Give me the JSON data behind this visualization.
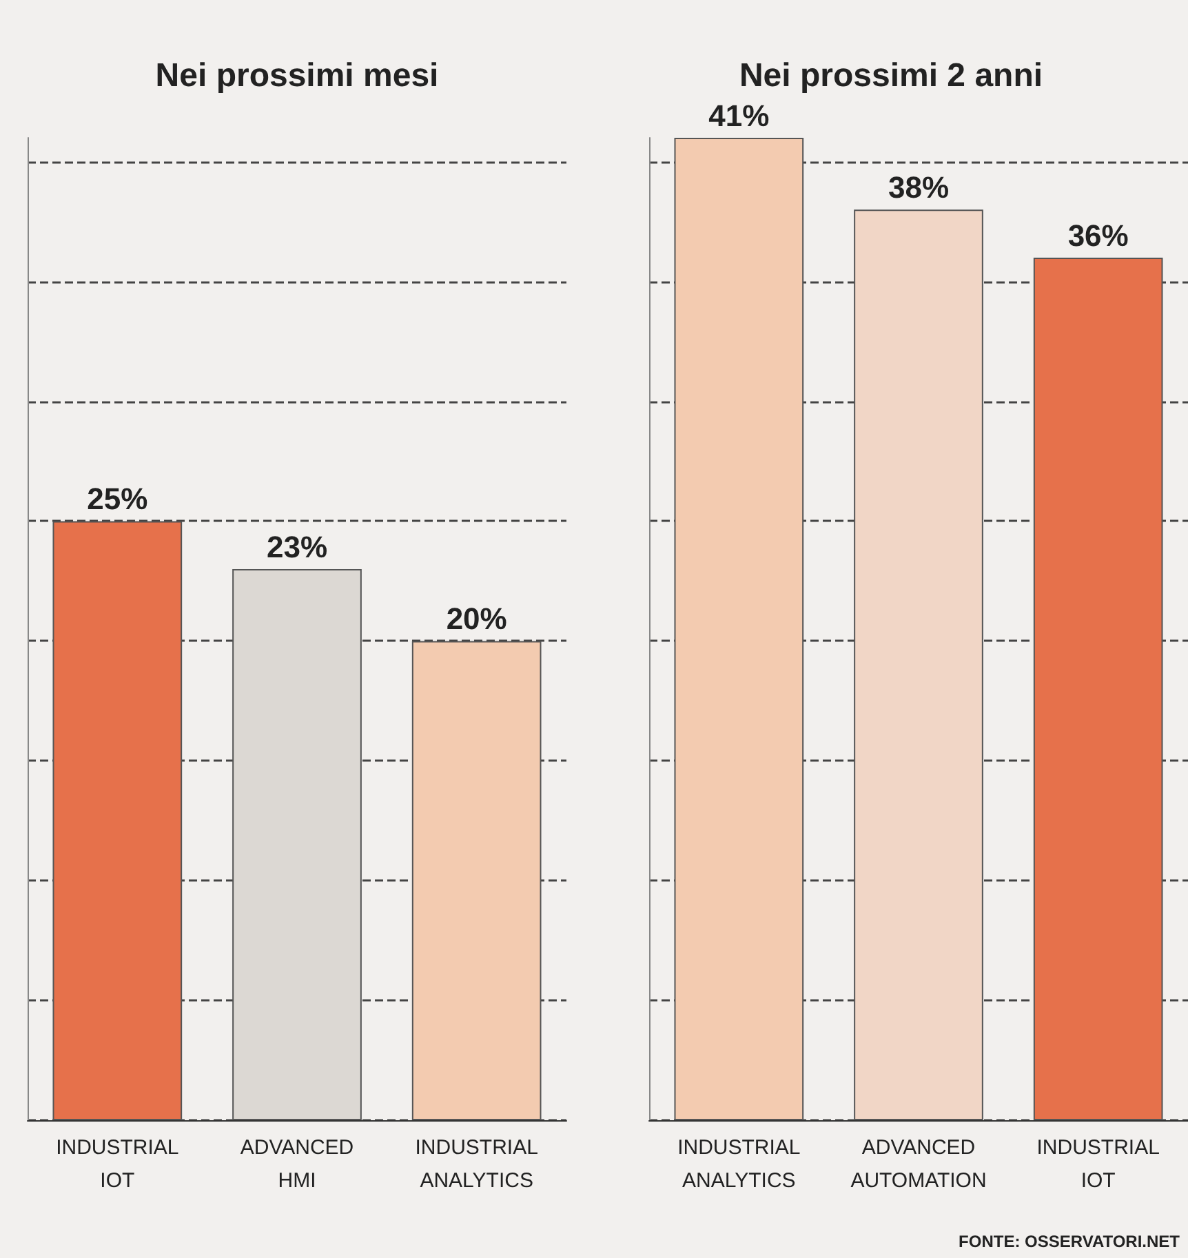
{
  "chart_data": [
    {
      "type": "bar",
      "title": "Nei prossimi mesi",
      "categories": [
        "INDUSTRIAL IOT",
        "ADVANCED HMI",
        "INDUSTRIAL ANALYTICS"
      ],
      "values": [
        25,
        23,
        20
      ],
      "colors": [
        "#e6714b",
        "#dcd8d3",
        "#f3cbb0"
      ],
      "value_labels": [
        "25%",
        "23%",
        "20%"
      ],
      "ylim": [
        0,
        41
      ],
      "yticks": [
        {
          "value": 0,
          "label": null
        },
        {
          "value": 5,
          "label": null
        },
        {
          "value": 10,
          "label": null
        },
        {
          "value": 15,
          "label": null
        },
        {
          "value": 20,
          "label": null
        },
        {
          "value": 25,
          "label": null
        },
        {
          "value": 30,
          "label": null
        },
        {
          "value": 35,
          "label": null
        },
        {
          "value": 40,
          "label": null
        }
      ],
      "grid": "y",
      "tick_labels": "x"
    },
    {
      "type": "bar",
      "title": "Nei prossimi 2 anni",
      "categories": [
        "INDUSTRIAL ANALYTICS",
        "ADVANCED AUTOMATION",
        "INDUSTRIAL IOT"
      ],
      "values": [
        41,
        38,
        36
      ],
      "colors": [
        "#f3cbb0",
        "#f1d6c6",
        "#e6714b"
      ],
      "value_labels": [
        "41%",
        "38%",
        "36%"
      ],
      "ylim": [
        0,
        41
      ],
      "yticks": [
        {
          "value": 0,
          "label": null
        },
        {
          "value": 5,
          "label": null
        },
        {
          "value": 10,
          "label": null
        },
        {
          "value": 15,
          "label": null
        },
        {
          "value": 20,
          "label": null
        },
        {
          "value": 25,
          "label": null
        },
        {
          "value": 30,
          "label": null
        },
        {
          "value": 35,
          "label": null
        },
        {
          "value": 40,
          "label": null
        }
      ],
      "grid": "y",
      "tick_labels": "x",
      "annotations": [
        "FONTE: OSSERVATORI.NET"
      ]
    }
  ]
}
